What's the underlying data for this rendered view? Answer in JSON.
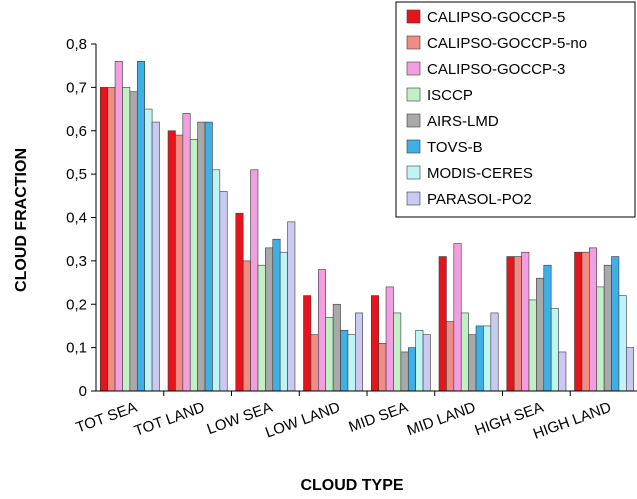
{
  "chart_data": {
    "type": "bar",
    "xlabel": "CLOUD TYPE",
    "ylabel": "CLOUD FRACTION",
    "ylim": [
      0,
      0.8
    ],
    "yticks": [
      "0",
      "0,1",
      "0,2",
      "0,3",
      "0,4",
      "0,5",
      "0,6",
      "0,7",
      "0,8"
    ],
    "grid": false,
    "legend_position": "top-right",
    "categories": [
      "TOT SEA",
      "TOT LAND",
      "LOW SEA",
      "LOW LAND",
      "MID SEA",
      "MID LAND",
      "HIGH SEA",
      "HIGH LAND"
    ],
    "series": [
      {
        "name": "CALIPSO-GOCCP-5",
        "color": "#e8141c",
        "values": [
          0.7,
          0.6,
          0.41,
          0.22,
          0.22,
          0.31,
          0.31,
          0.32
        ]
      },
      {
        "name": "CALIPSO-GOCCP-5-no",
        "color": "#f08c84",
        "values": [
          0.7,
          0.59,
          0.3,
          0.13,
          0.11,
          0.16,
          0.31,
          0.32
        ]
      },
      {
        "name": "CALIPSO-GOCCP-3",
        "color": "#f29ee0",
        "values": [
          0.76,
          0.64,
          0.51,
          0.28,
          0.24,
          0.34,
          0.32,
          0.33
        ]
      },
      {
        "name": "ISCCP",
        "color": "#c2f0c6",
        "values": [
          0.7,
          0.58,
          0.29,
          0.17,
          0.18,
          0.18,
          0.21,
          0.24
        ]
      },
      {
        "name": "AIRS-LMD",
        "color": "#a9a9a9",
        "values": [
          0.69,
          0.62,
          0.33,
          0.2,
          0.09,
          0.13,
          0.26,
          0.29
        ]
      },
      {
        "name": "TOVS-B",
        "color": "#3fb0e6",
        "values": [
          0.76,
          0.62,
          0.35,
          0.14,
          0.1,
          0.15,
          0.29,
          0.31
        ]
      },
      {
        "name": "MODIS-CERES",
        "color": "#bff4f4",
        "values": [
          0.65,
          0.51,
          0.32,
          0.13,
          0.14,
          0.15,
          0.19,
          0.22
        ]
      },
      {
        "name": "PARASOL-PO2",
        "color": "#c9c9f2",
        "values": [
          0.62,
          0.46,
          0.39,
          0.18,
          0.13,
          0.18,
          0.09,
          0.1
        ]
      }
    ]
  }
}
